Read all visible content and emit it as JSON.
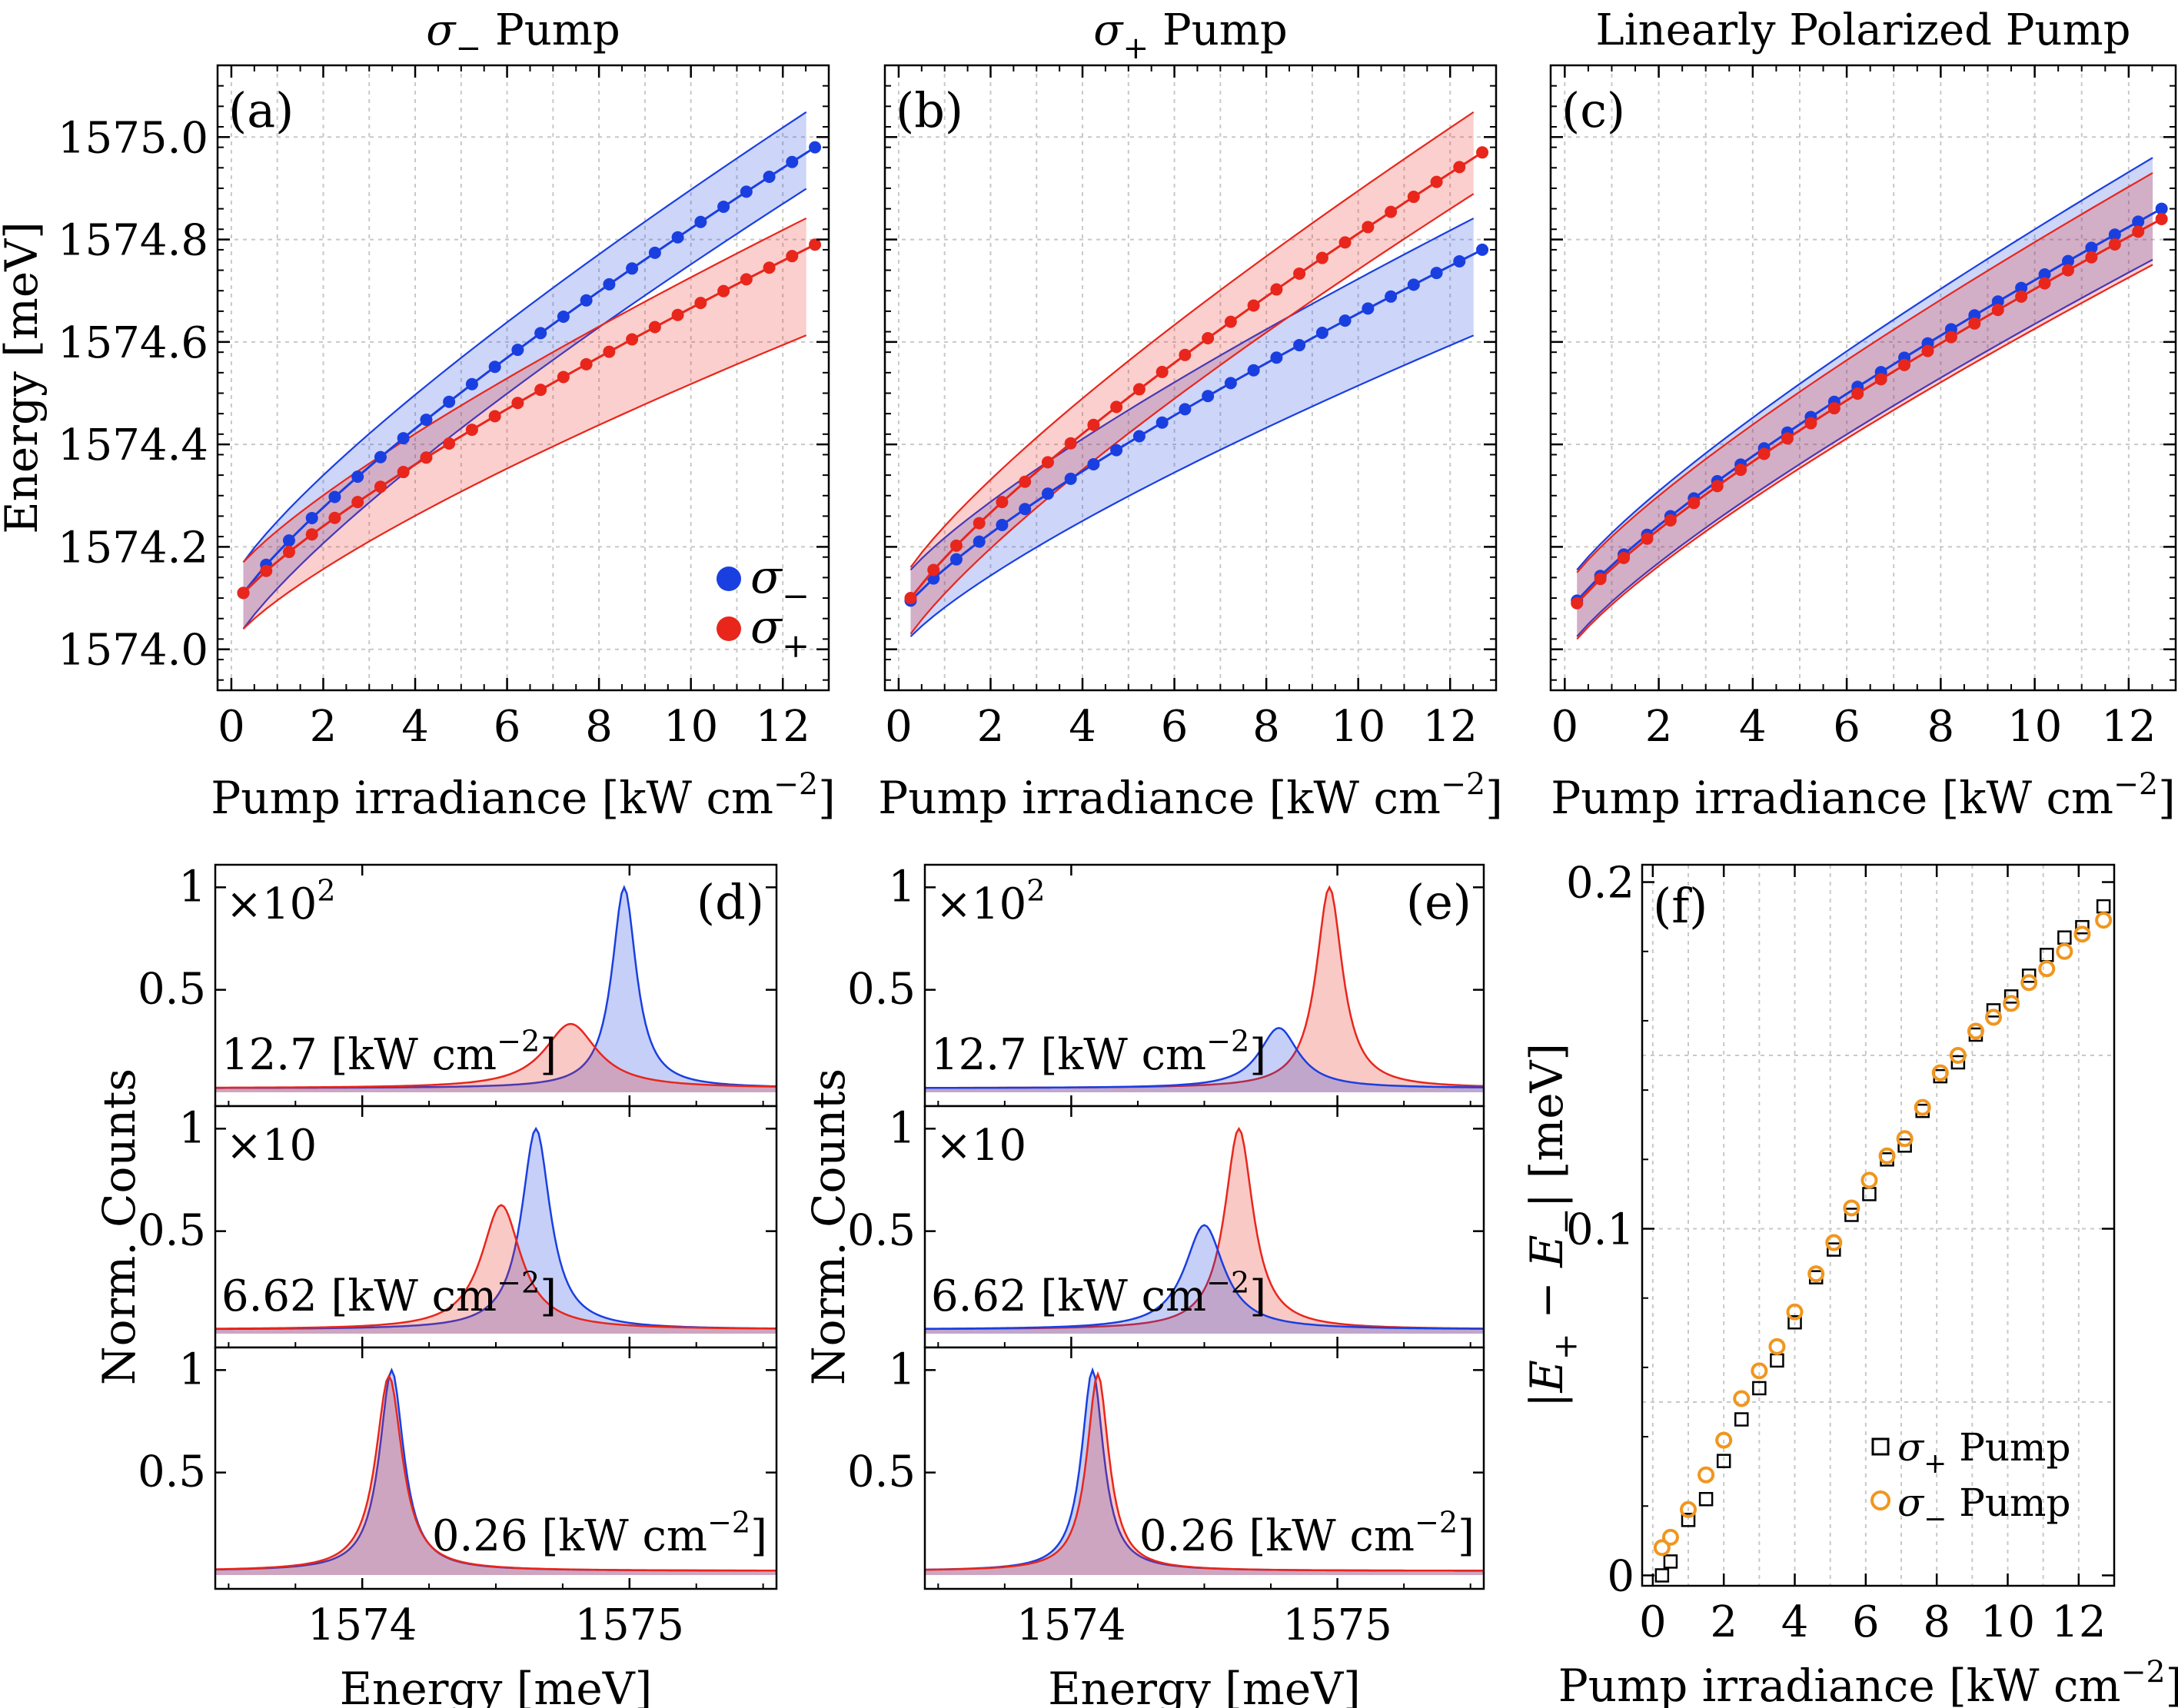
{
  "chart_data": [
    {
      "id": "a",
      "type": "line",
      "panel_label": "(a)",
      "title": "σ− Pump",
      "xlabel": "Pump irradiance [kW cm−2]",
      "ylabel": "Energy [meV]",
      "xlim": [
        -0.3,
        13
      ],
      "ylim": [
        1573.92,
        1575.14
      ],
      "xticks": [
        0,
        2,
        4,
        6,
        8,
        10,
        12
      ],
      "yticks": [
        "1574.0",
        "1574.2",
        "1574.4",
        "1574.6",
        "1574.8",
        "1575.0"
      ],
      "legend": {
        "position": "bottom-right",
        "entries": [
          "σ−",
          "σ+"
        ]
      },
      "series": [
        {
          "name": "σ−",
          "color": "#1a3fe0",
          "e0": 1574.11,
          "e1": 1574.98,
          "band_lo": 0.07,
          "band_hi": 0.08
        },
        {
          "name": "σ+",
          "color": "#e8261c",
          "e0": 1574.11,
          "e1": 1574.79,
          "band_lo": 0.17,
          "band_hi": 0.06
        }
      ]
    },
    {
      "id": "b",
      "type": "line",
      "panel_label": "(b)",
      "title": "σ+ Pump",
      "xlabel": "Pump irradiance [kW cm−2]",
      "xlim": [
        -0.3,
        13
      ],
      "ylim": [
        1573.92,
        1575.14
      ],
      "xticks": [
        0,
        2,
        4,
        6,
        8,
        10,
        12
      ],
      "series": [
        {
          "name": "σ−",
          "color": "#1a3fe0",
          "e0": 1574.095,
          "e1": 1574.78,
          "band_lo": 0.16,
          "band_hi": 0.07
        },
        {
          "name": "σ+",
          "color": "#e8261c",
          "e0": 1574.1,
          "e1": 1574.97,
          "band_lo": 0.07,
          "band_hi": 0.09
        }
      ]
    },
    {
      "id": "c",
      "type": "line",
      "panel_label": "(c)",
      "title": "Linearly Polarized Pump",
      "xlabel": "Pump irradiance [kW cm−2]",
      "xlim": [
        -0.3,
        13
      ],
      "ylim": [
        1573.92,
        1575.14
      ],
      "xticks": [
        0,
        2,
        4,
        6,
        8,
        10,
        12
      ],
      "series": [
        {
          "name": "σ−",
          "color": "#1a3fe0",
          "e0": 1574.095,
          "e1": 1574.86,
          "band_lo": 0.09,
          "band_hi": 0.11
        },
        {
          "name": "σ+",
          "color": "#e8261c",
          "e0": 1574.09,
          "e1": 1574.84,
          "band_lo": 0.08,
          "band_hi": 0.1
        }
      ]
    },
    {
      "id": "d",
      "type": "area",
      "panel_label": "(d)",
      "xlabel": "Energy [meV]",
      "ylabel": "Norm. Counts",
      "xlim": [
        1573.45,
        1575.55
      ],
      "xticks": [
        "1574",
        "1575"
      ],
      "subplots": [
        {
          "irradiance": "12.7",
          "multiplier": "×102",
          "peaks": [
            {
              "name": "σ−",
              "color": "#1a3fe0",
              "center": 1574.98,
              "height": 1.0,
              "width": 0.055
            },
            {
              "name": "σ+",
              "color": "#e8261c",
              "center": 1574.78,
              "height": 0.32,
              "width": 0.12
            }
          ]
        },
        {
          "irradiance": "6.62",
          "multiplier": "×10",
          "peaks": [
            {
              "name": "σ−",
              "color": "#1a3fe0",
              "center": 1574.65,
              "height": 1.0,
              "width": 0.065
            },
            {
              "name": "σ+",
              "color": "#e8261c",
              "center": 1574.52,
              "height": 0.62,
              "width": 0.09
            }
          ]
        },
        {
          "irradiance": "0.26",
          "multiplier": "",
          "peaks": [
            {
              "name": "σ−",
              "color": "#1a3fe0",
              "center": 1574.11,
              "height": 1.0,
              "width": 0.055
            },
            {
              "name": "σ+",
              "color": "#e8261c",
              "center": 1574.1,
              "height": 0.97,
              "width": 0.06
            }
          ]
        }
      ]
    },
    {
      "id": "e",
      "type": "area",
      "panel_label": "(e)",
      "xlabel": "Energy [meV]",
      "ylabel": "Norm. Counts",
      "xlim": [
        1573.45,
        1575.55
      ],
      "xticks": [
        "1574",
        "1575"
      ],
      "subplots": [
        {
          "irradiance": "12.7",
          "multiplier": "×102",
          "peaks": [
            {
              "name": "σ+",
              "color": "#e8261c",
              "center": 1574.97,
              "height": 1.0,
              "width": 0.06
            },
            {
              "name": "σ−",
              "color": "#1a3fe0",
              "center": 1574.78,
              "height": 0.3,
              "width": 0.09
            }
          ]
        },
        {
          "irradiance": "6.62",
          "multiplier": "×10",
          "peaks": [
            {
              "name": "σ+",
              "color": "#e8261c",
              "center": 1574.63,
              "height": 1.0,
              "width": 0.065
            },
            {
              "name": "σ−",
              "color": "#1a3fe0",
              "center": 1574.5,
              "height": 0.52,
              "width": 0.09
            }
          ]
        },
        {
          "irradiance": "0.26",
          "multiplier": "",
          "peaks": [
            {
              "name": "σ−",
              "color": "#1a3fe0",
              "center": 1574.08,
              "height": 1.0,
              "width": 0.05
            },
            {
              "name": "σ+",
              "color": "#e8261c",
              "center": 1574.1,
              "height": 0.98,
              "width": 0.05
            }
          ]
        }
      ]
    },
    {
      "id": "f",
      "type": "scatter",
      "panel_label": "(f)",
      "xlabel": "Pump irradiance [kW cm−2]",
      "ylabel": "|E+ − E−| [meV]",
      "xlim": [
        -0.3,
        13
      ],
      "ylim": [
        -0.003,
        0.205
      ],
      "xticks": [
        0,
        2,
        4,
        6,
        8,
        10,
        12
      ],
      "yticks": [
        "0",
        "0.1",
        "0.2"
      ],
      "legend": {
        "position": "bottom-right",
        "entries": [
          "σ+ Pump",
          "σ− Pump"
        ]
      },
      "series": [
        {
          "name": "σ+ Pump",
          "marker": "square",
          "color": "#000000",
          "x": [
            0.26,
            0.5,
            1.0,
            1.5,
            2.0,
            2.5,
            3.0,
            3.5,
            4.0,
            4.6,
            5.1,
            5.6,
            6.1,
            6.6,
            7.1,
            7.6,
            8.1,
            8.6,
            9.1,
            9.6,
            10.1,
            10.6,
            11.1,
            11.6,
            12.1,
            12.7
          ],
          "y": [
            0.0,
            0.004,
            0.016,
            0.022,
            0.033,
            0.045,
            0.054,
            0.062,
            0.073,
            0.086,
            0.094,
            0.104,
            0.11,
            0.12,
            0.124,
            0.134,
            0.144,
            0.148,
            0.156,
            0.163,
            0.167,
            0.173,
            0.179,
            0.184,
            0.187,
            0.193
          ]
        },
        {
          "name": "σ− Pump",
          "marker": "circle",
          "color": "#f0961e",
          "x": [
            0.26,
            0.5,
            1.0,
            1.5,
            2.0,
            2.5,
            3.0,
            3.5,
            4.0,
            4.6,
            5.1,
            5.6,
            6.1,
            6.6,
            7.1,
            7.6,
            8.1,
            8.6,
            9.1,
            9.6,
            10.1,
            10.6,
            11.1,
            11.6,
            12.1,
            12.7
          ],
          "y": [
            0.008,
            0.011,
            0.019,
            0.029,
            0.039,
            0.051,
            0.059,
            0.066,
            0.076,
            0.087,
            0.096,
            0.106,
            0.114,
            0.121,
            0.126,
            0.135,
            0.145,
            0.15,
            0.157,
            0.161,
            0.165,
            0.171,
            0.175,
            0.18,
            0.185,
            0.189
          ]
        }
      ]
    }
  ],
  "labels": {
    "title_a": "σ− Pump",
    "title_b": "σ+ Pump",
    "title_c": "Linearly Polarized Pump",
    "pump_irradiance": "Pump irradiance [kW cm−2]",
    "energy_meV": "Energy [meV]",
    "norm_counts": "Norm. Counts",
    "abs_diff": "|E+ − E−| [meV]"
  }
}
